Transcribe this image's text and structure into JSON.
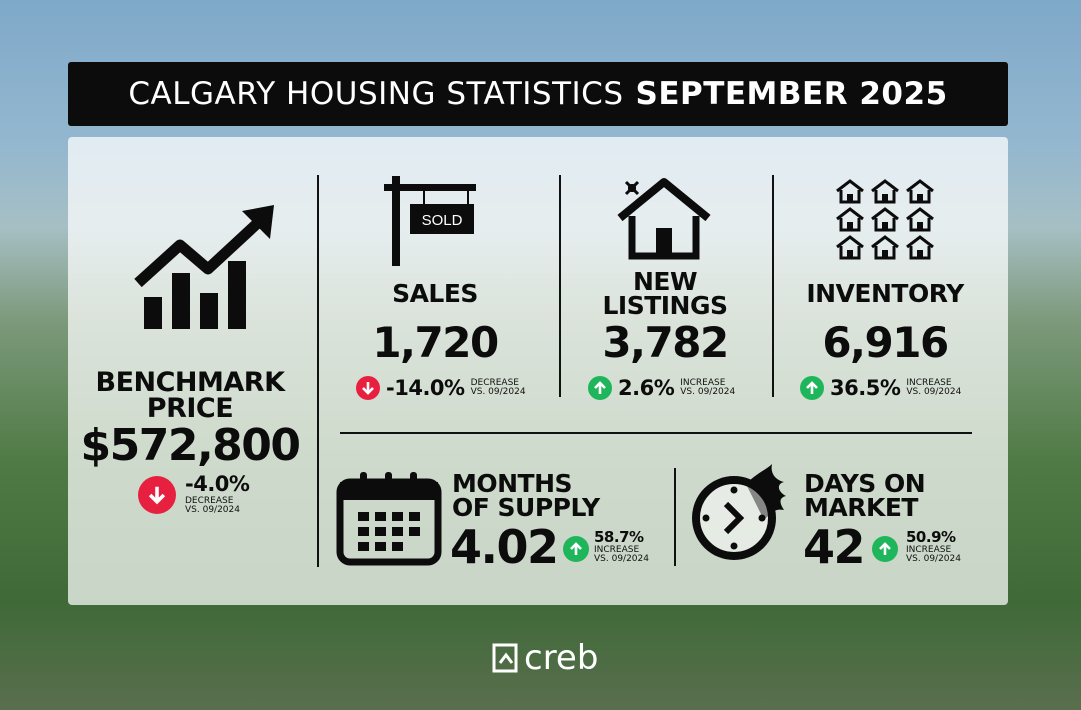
{
  "title": {
    "main": "CALGARY HOUSING STATISTICS",
    "period": "SEPTEMBER 2025"
  },
  "benchmark": {
    "label1": "BENCHMARK",
    "label2": "PRICE",
    "value": "$572,800",
    "change": "-4.0%",
    "direction": "down",
    "note1": "DECREASE",
    "note2": "VS. 09/2024",
    "icon": "rising-chart-icon"
  },
  "sales": {
    "label": "SALES",
    "value": "1,720",
    "change": "-14.0%",
    "direction": "down",
    "note1": "DECREASE",
    "note2": "VS. 09/2024",
    "sign_text": "SOLD",
    "icon": "sold-sign-icon"
  },
  "new_listings": {
    "label1": "NEW",
    "label2": "LISTINGS",
    "value": "3,782",
    "change": "2.6%",
    "direction": "up",
    "note1": "INCREASE",
    "note2": "VS. 09/2024",
    "icon": "new-house-icon"
  },
  "inventory": {
    "label": "INVENTORY",
    "value": "6,916",
    "change": "36.5%",
    "direction": "up",
    "note1": "INCREASE",
    "note2": "VS. 09/2024",
    "icon": "houses-grid-icon"
  },
  "months_supply": {
    "label1": "MONTHS",
    "label2": "OF SUPPLY",
    "value": "4.02",
    "change": "58.7%",
    "direction": "up",
    "note1": "INCREASE",
    "note2": "VS. 09/2024",
    "icon": "calendar-icon"
  },
  "days_on_market": {
    "label1": "DAYS ON",
    "label2": "MARKET",
    "value": "42",
    "change": "50.9%",
    "direction": "up",
    "note1": "INCREASE",
    "note2": "VS. 09/2024",
    "icon": "fast-clock-icon"
  },
  "logo": {
    "text": "creb"
  },
  "colors": {
    "decrease": "#e8203f",
    "increase": "#1fb55a",
    "title_bg": "#0c0c0c"
  }
}
